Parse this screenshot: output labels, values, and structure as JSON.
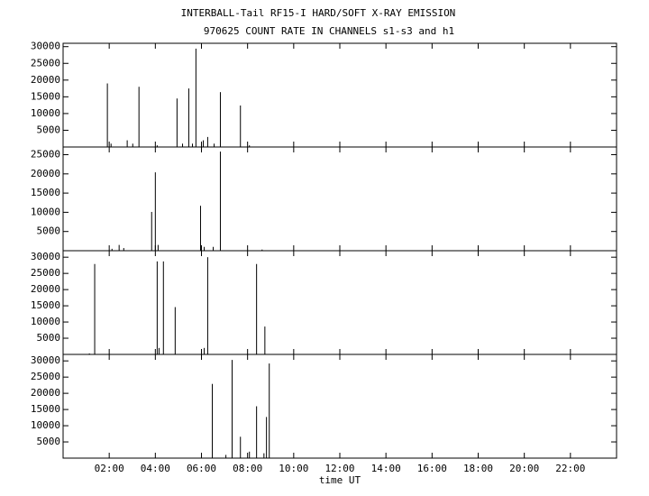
{
  "chart_data": {
    "type": "spike",
    "title": "INTERBALL-Tail RF15-I HARD/SOFT X-RAY EMISSION",
    "subtitle": "970625  COUNT RATE IN CHANNELS s1-s3 and h1",
    "xlabel": "time UT",
    "color": "#000000",
    "xlim": [
      0,
      24
    ],
    "xticks": [
      {
        "value": 2,
        "label": "02:00"
      },
      {
        "value": 4,
        "label": "04:00"
      },
      {
        "value": 6,
        "label": "06:00"
      },
      {
        "value": 8,
        "label": "08:00"
      },
      {
        "value": 10,
        "label": "10:00"
      },
      {
        "value": 12,
        "label": "12:00"
      },
      {
        "value": 14,
        "label": "14:00"
      },
      {
        "value": 16,
        "label": "16:00"
      },
      {
        "value": 18,
        "label": "18:00"
      },
      {
        "value": 20,
        "label": "20:00"
      },
      {
        "value": 22,
        "label": "22:00"
      }
    ],
    "panels": [
      {
        "ylim": [
          0,
          31000
        ],
        "yticks": [
          5000,
          10000,
          15000,
          20000,
          25000,
          30000
        ],
        "x": [
          1.92,
          2.08,
          2.78,
          3.02,
          3.29,
          4.08,
          4.94,
          5.18,
          5.45,
          5.61,
          5.76,
          6.08,
          6.27,
          6.55,
          6.82,
          7.69,
          8.08
        ],
        "values": [
          19000,
          1000,
          2000,
          1000,
          18000,
          500,
          14500,
          1000,
          17500,
          1000,
          29400,
          2000,
          3000,
          1000,
          16400,
          12400,
          500
        ]
      },
      {
        "ylim": [
          0,
          27000
        ],
        "yticks": [
          5000,
          10000,
          15000,
          20000,
          25000
        ],
        "x": [
          2.12,
          2.43,
          2.63,
          3.84,
          4.0,
          4.12,
          5.96,
          6.12,
          6.51,
          6.82,
          8.63
        ],
        "values": [
          500,
          1500,
          700,
          10100,
          20400,
          1500,
          11700,
          1000,
          1000,
          25800,
          300
        ]
      },
      {
        "ylim": [
          0,
          32000
        ],
        "yticks": [
          5000,
          10000,
          15000,
          20000,
          25000,
          30000
        ],
        "x": [
          1.14,
          1.37,
          4.08,
          4.16,
          4.35,
          4.86,
          6.12,
          6.27,
          8.39,
          8.75
        ],
        "values": [
          300,
          27900,
          28700,
          2000,
          28700,
          14600,
          2000,
          30000,
          27900,
          8600
        ]
      },
      {
        "ylim": [
          0,
          32000
        ],
        "yticks": [
          5000,
          10000,
          15000,
          20000,
          25000,
          30000
        ],
        "x": [
          6.47,
          7.06,
          7.33,
          7.69,
          8.08,
          8.39,
          8.71,
          8.82,
          8.94
        ],
        "values": [
          22900,
          1000,
          30300,
          6600,
          2000,
          16000,
          1500,
          12700,
          29200
        ]
      }
    ]
  }
}
